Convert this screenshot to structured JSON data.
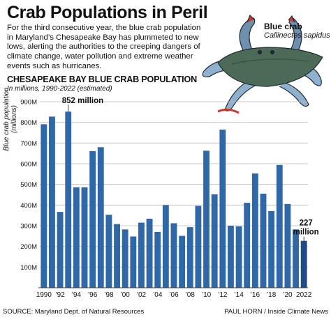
{
  "header": {
    "title": "Crab Populations in Peril",
    "intro": "For the third consecutive year, the blue crab population in Maryland’s Chesapeake Bay has plummeted to new lows, alerting the authorities to the creeping dangers of climate change, water pollution and extreme weather events such as hurricanes."
  },
  "illustration": {
    "icon": "blue-crab-icon",
    "label": "Blue crab",
    "species": "Callinectes sapidus"
  },
  "footer": {
    "source": "SOURCE: Maryland Dept. of Natural Resources",
    "credit": "PAUL HORN / Inside Climate News"
  },
  "chart_data": {
    "type": "bar",
    "title": "CHESAPEAKE BAY BLUE CRAB POPULATION",
    "subtitle": "In millions, 1990-2022 (estimated)",
    "ylabel": "Blue crab population (millions)",
    "xlabel": "",
    "x": [
      1990,
      1991,
      1992,
      1993,
      1994,
      1995,
      1996,
      1997,
      1998,
      1999,
      2000,
      2001,
      2002,
      2003,
      2004,
      2005,
      2006,
      2007,
      2008,
      2009,
      2010,
      2011,
      2012,
      2013,
      2014,
      2015,
      2016,
      2017,
      2018,
      2019,
      2020,
      2021,
      2022
    ],
    "values": [
      791,
      828,
      367,
      852,
      486,
      486,
      661,
      680,
      353,
      308,
      282,
      248,
      315,
      334,
      270,
      400,
      312,
      251,
      293,
      396,
      663,
      452,
      765,
      300,
      297,
      411,
      553,
      455,
      371,
      594,
      405,
      282,
      227
    ],
    "xticks": [
      "1990",
      "’92",
      "’94",
      "’96",
      "’98",
      "’00",
      "’02",
      "’04",
      "’06",
      "’08",
      "’10",
      "’12",
      "’14",
      "’16",
      "’18",
      "’20",
      "2022"
    ],
    "yticks": [
      "100M",
      "200M",
      "300M",
      "400M",
      "500M",
      "600M",
      "700M",
      "800M",
      "900M"
    ],
    "ylim": [
      0,
      900
    ],
    "grid": true,
    "annotations": [
      {
        "x": 1993,
        "value": 852,
        "text": "852 million"
      },
      {
        "x": 2022,
        "value": 227,
        "text": "227 million"
      }
    ],
    "colors": {
      "bar": "#2f67a7",
      "highlight": "#1f4a8c",
      "grid": "#bdbdbd",
      "axis": "#333333"
    }
  }
}
